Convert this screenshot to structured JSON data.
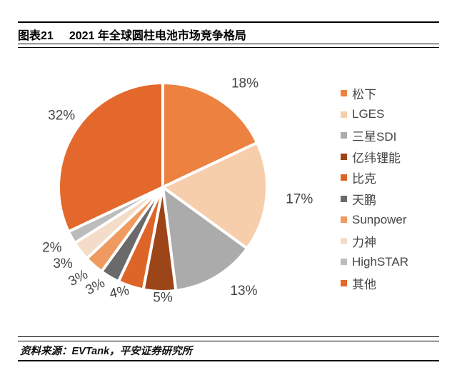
{
  "header": {
    "tag": "图表21",
    "title": "2021 年全球圆柱电池市场竞争格局"
  },
  "footer": {
    "source": "资料来源：EVTank，平安证券研究所"
  },
  "chart_data": {
    "type": "pie",
    "title": "2021 年全球圆柱电池市场竞争格局",
    "legend_position": "right",
    "direction": "clockwise",
    "start_angle_deg": 0,
    "label_style": "percent-outside",
    "slices": [
      {
        "label": "松下",
        "value": 18,
        "pct_label": "18%",
        "color": "#ED8140"
      },
      {
        "label": "LGES",
        "value": 17,
        "pct_label": "17%",
        "color": "#F6CEAC"
      },
      {
        "label": "三星SDI",
        "value": 13,
        "pct_label": "13%",
        "color": "#ABABAB"
      },
      {
        "label": "亿纬锂能",
        "value": 5,
        "pct_label": "5%",
        "color": "#9C4519"
      },
      {
        "label": "比克",
        "value": 4,
        "pct_label": "4%",
        "color": "#DE6528"
      },
      {
        "label": "天鹏",
        "value": 3,
        "pct_label": "3%",
        "color": "#6A6A6A"
      },
      {
        "label": "Sunpower",
        "value": 3,
        "pct_label": "3%",
        "color": "#EE9A60"
      },
      {
        "label": "力神",
        "value": 3,
        "pct_label": "3%",
        "color": "#F4DDC8"
      },
      {
        "label": "HighSTAR",
        "value": 2,
        "pct_label": "2%",
        "color": "#BCBCBC"
      },
      {
        "label": "其他",
        "value": 32,
        "pct_label": "32%",
        "color": "#E4682C"
      }
    ]
  }
}
